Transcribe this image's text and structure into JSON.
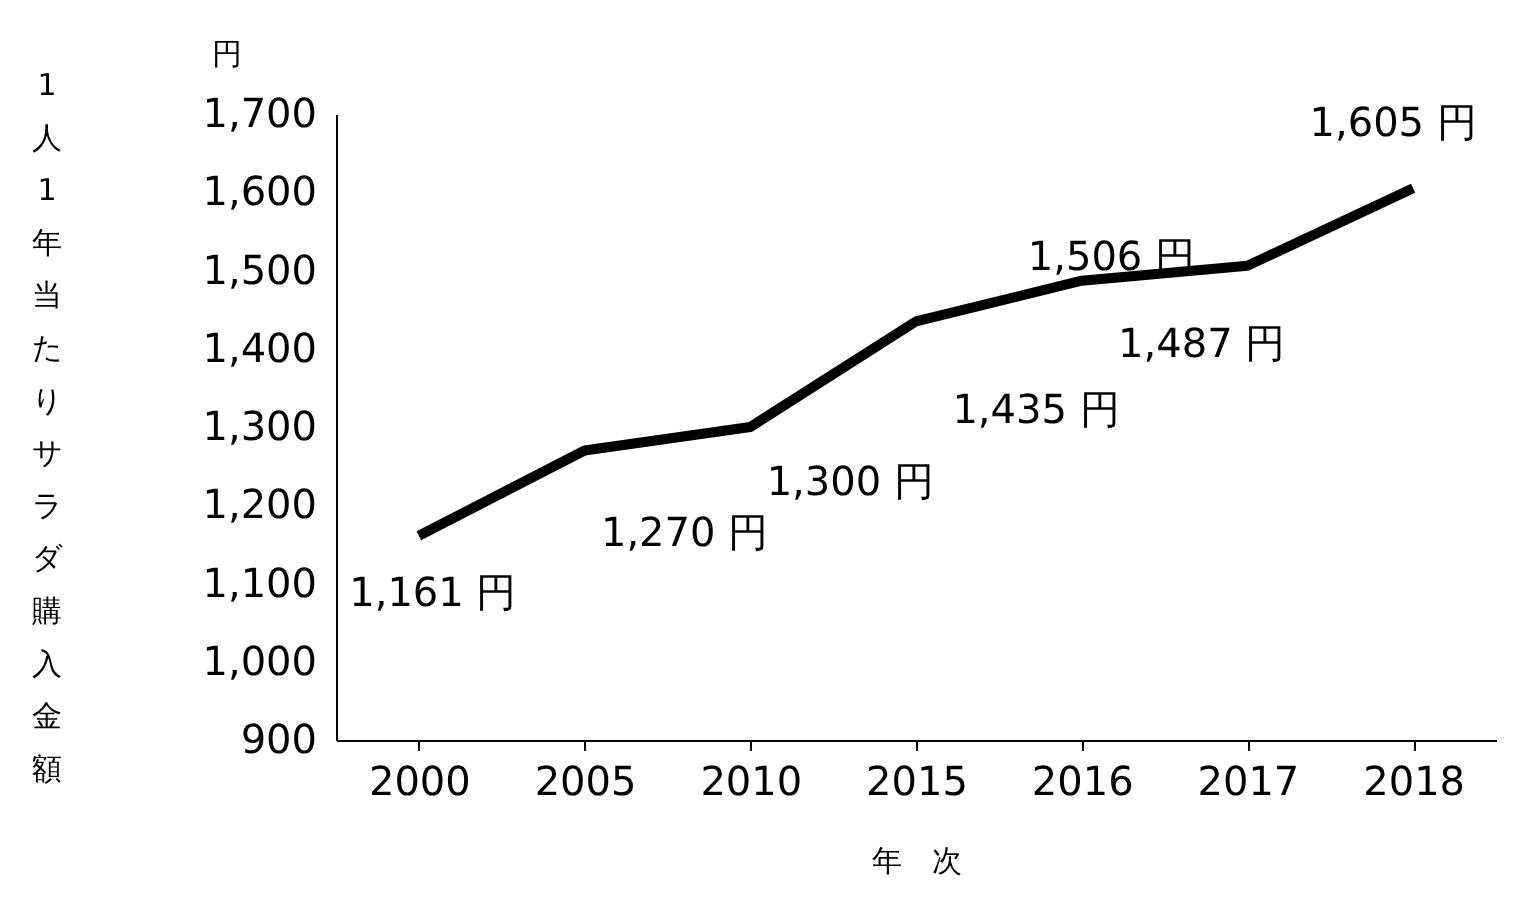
{
  "chart_data": {
    "type": "line",
    "ylabel": "1人1年当たりサラダ購入金額",
    "xlabel": "年　次",
    "annotations": [
      "円"
    ],
    "categories": [
      "2000",
      "2005",
      "2010",
      "2015",
      "2016",
      "2017",
      "2018"
    ],
    "series": [
      {
        "color": "#000000",
        "values": [
          1161,
          1270,
          1300,
          1435,
          1487,
          1506,
          1605
        ],
        "value_labels": [
          "1,161 円",
          "1,270 円",
          "1,300 円",
          "1,435 円",
          "1,487 円",
          "1,506 円",
          "1,605 円"
        ]
      }
    ],
    "ylim": [
      900,
      1700
    ],
    "yticks": [
      {
        "value": 900,
        "label": "900"
      },
      {
        "value": 1000,
        "label": "1,000"
      },
      {
        "value": 1100,
        "label": "1,100"
      },
      {
        "value": 1200,
        "label": "1,200"
      },
      {
        "value": 1300,
        "label": "1,300"
      },
      {
        "value": 1400,
        "label": "1,400"
      },
      {
        "value": 1500,
        "label": "1,500"
      },
      {
        "value": 1600,
        "label": "1,600"
      },
      {
        "value": 1700,
        "label": "1,700"
      }
    ],
    "grid": false,
    "legend": false,
    "marker": "none",
    "line_style": "solid"
  }
}
